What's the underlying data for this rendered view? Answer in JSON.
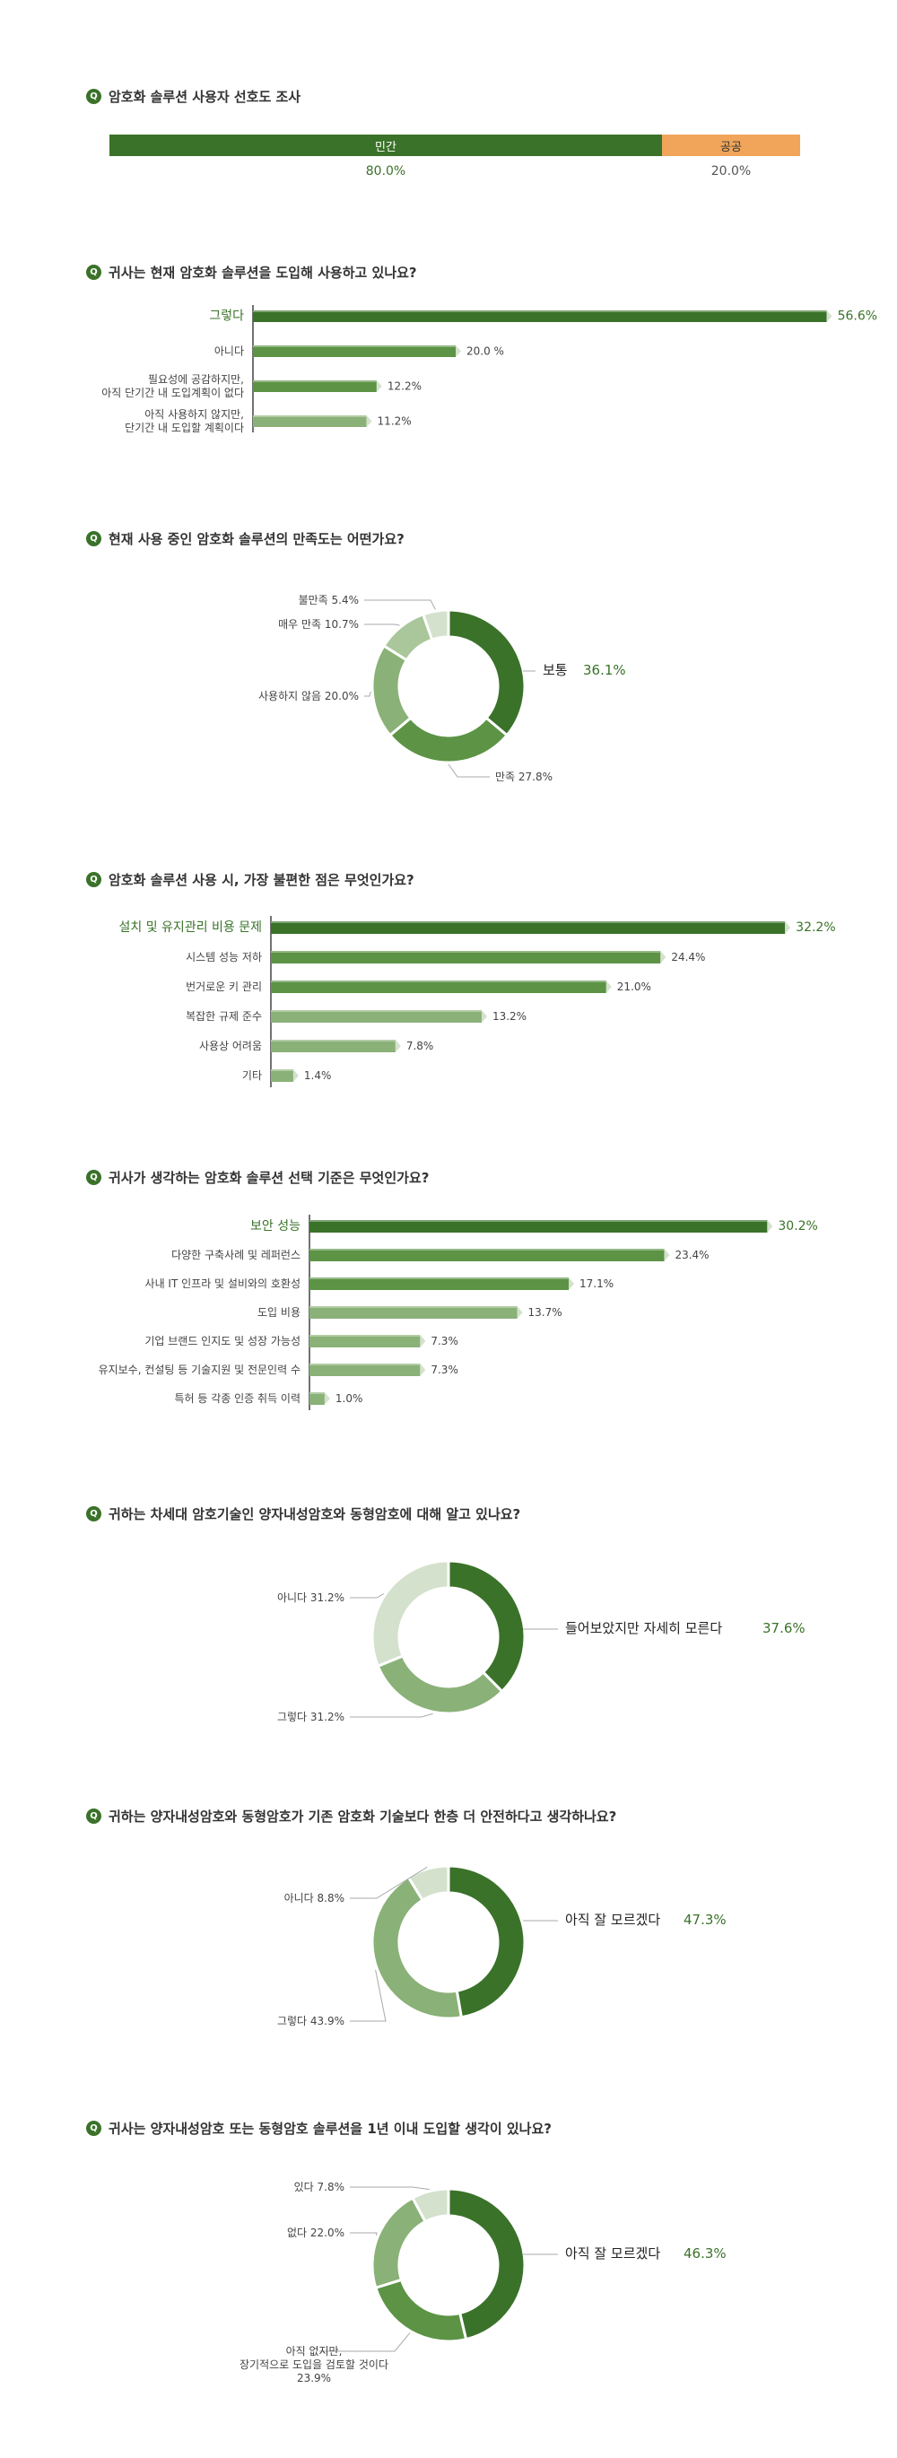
{
  "q_icon": "Q",
  "colors": {
    "dark": "#3a7229",
    "mid": "#5c9345",
    "light": "#8ab177",
    "pale": "#d4e1cc",
    "orange": "#f0a55a",
    "axis": "#444444",
    "label": "#444444"
  },
  "q1": {
    "title": "암호화 솔루션 사용자 선호도 조사"
  },
  "q2": {
    "title": "귀사는 현재 암호화 솔루션을 도입해 사용하고 있나요?"
  },
  "q3": {
    "title": "현재 사용 중인 암호화 솔루션의 만족도는 어떤가요?"
  },
  "q4": {
    "title": "암호화 솔루션 사용 시, 가장 불편한 점은 무엇인가요?"
  },
  "q5": {
    "title": "귀사가 생각하는 암호화 솔루션 선택 기준은 무엇인가요?"
  },
  "q6": {
    "title": "귀하는 차세대 암호기술인 양자내성암호와 동형암호에 대해 알고 있나요?"
  },
  "q7": {
    "title": "귀하는 양자내성암호와 동형암호가 기존 암호화 기술보다 한층 더 안전하다고 생각하나요?"
  },
  "q8": {
    "title": "귀사는 양자내성암호 또는 동형암호 솔루션을 1년 이내 도입할 생각이 있나요?"
  },
  "chart_data": [
    {
      "type": "bar",
      "stacked": true,
      "orientation": "horizontal",
      "categories": [
        "민간",
        "공공"
      ],
      "values": [
        80.0,
        20.0
      ],
      "value_labels": [
        "80.0%",
        "20.0%"
      ],
      "colors": [
        "#3a7229",
        "#f0a55a"
      ]
    },
    {
      "type": "bar",
      "orientation": "horizontal",
      "categories": [
        "그렇다",
        "아니다",
        "필요성에 공감하지만,\n아직 단기간 내 도입계획이 없다",
        "아직 사용하지 않지만,\n단기간 내 도입할 계획이다"
      ],
      "values": [
        56.6,
        20.0,
        12.2,
        11.2
      ],
      "value_labels": [
        "56.6%",
        "20.0 %",
        "12.2%",
        "11.2%"
      ]
    },
    {
      "type": "pie",
      "donut": true,
      "categories": [
        "보통",
        "만족",
        "사용하지 않음",
        "매우 만족",
        "불만족"
      ],
      "values": [
        36.1,
        27.8,
        20.0,
        10.7,
        5.4
      ],
      "value_labels": [
        "36.1%",
        "27.8%",
        "20.0%",
        "10.7%",
        "5.4%"
      ]
    },
    {
      "type": "bar",
      "orientation": "horizontal",
      "categories": [
        "설치 및 유지관리 비용 문제",
        "시스템 성능 저하",
        "번거로운 키 관리",
        "복잡한 규제 준수",
        "사용상 어려움",
        "기타"
      ],
      "values": [
        32.2,
        24.4,
        21.0,
        13.2,
        7.8,
        1.4
      ],
      "value_labels": [
        "32.2%",
        "24.4%",
        "21.0%",
        "13.2%",
        "7.8%",
        "1.4%"
      ]
    },
    {
      "type": "bar",
      "orientation": "horizontal",
      "categories": [
        "보안 성능",
        "다양한 구축사례 및 레퍼런스",
        "사내 IT 인프라 및 설비와의 호환성",
        "도입 비용",
        "기업 브랜드 인지도 및 성장 가능성",
        "유지보수, 컨설팅 등 기술지원 및 전문인력 수",
        "특허 등 각종 인증 취득 이력"
      ],
      "values": [
        30.2,
        23.4,
        17.1,
        13.7,
        7.3,
        7.3,
        1.0
      ],
      "value_labels": [
        "30.2%",
        "23.4%",
        "17.1%",
        "13.7%",
        "7.3%",
        "7.3%",
        "1.0%"
      ]
    },
    {
      "type": "pie",
      "donut": true,
      "categories": [
        "들어보았지만 자세히 모른다",
        "그렇다",
        "아니다"
      ],
      "values": [
        37.6,
        31.2,
        31.2
      ],
      "value_labels": [
        "37.6%",
        "31.2%",
        "31.2%"
      ]
    },
    {
      "type": "pie",
      "donut": true,
      "categories": [
        "아직 잘 모르겠다",
        "그렇다",
        "아니다"
      ],
      "values": [
        47.3,
        43.9,
        8.8
      ],
      "value_labels": [
        "47.3%",
        "43.9%",
        "8.8%"
      ]
    },
    {
      "type": "pie",
      "donut": true,
      "categories": [
        "아직 잘 모르겠다",
        "아직 없지만,\n장기적으로 도입을 검토할 것이다",
        "없다",
        "있다"
      ],
      "values": [
        46.3,
        23.9,
        22.0,
        7.8
      ],
      "value_labels": [
        "46.3%",
        "23.9%",
        "22.0%",
        "7.8%"
      ]
    }
  ]
}
